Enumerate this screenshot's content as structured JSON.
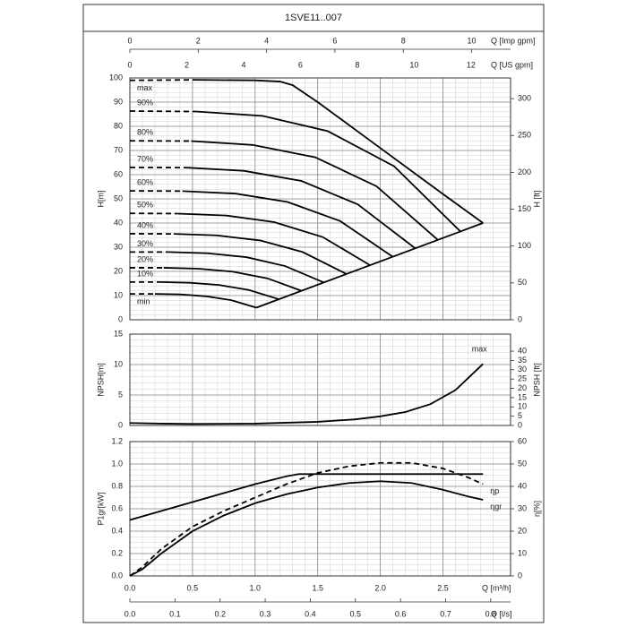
{
  "title": "1SVE11..007",
  "x_axis": {
    "label": "Q [m³/h]",
    "xlim": [
      0,
      3.04
    ],
    "minor_step": 0.1,
    "xticks": [
      {
        "value": 0,
        "label": "0.0"
      },
      {
        "value": 0.5,
        "label": "0.5"
      },
      {
        "value": 1,
        "label": "1.0"
      },
      {
        "value": 1.5,
        "label": "1.5"
      },
      {
        "value": 2,
        "label": "2.0"
      },
      {
        "value": 2.5,
        "label": "2.5"
      }
    ]
  },
  "extra_x_axes": [
    {
      "label": "Q [Imp gpm]",
      "xlim": [
        0,
        11.14
      ],
      "xticks": [
        0,
        2,
        4,
        6,
        8,
        10
      ]
    },
    {
      "label": "Q [US gpm]",
      "xlim": [
        0,
        13.39
      ],
      "xticks": [
        0,
        2,
        4,
        6,
        8,
        10,
        12
      ]
    },
    {
      "label": "Q [l/s]",
      "xlim": [
        0,
        0.844
      ],
      "xticks": [
        {
          "value": 0,
          "label": "0.0"
        },
        {
          "value": 0.1,
          "label": "0.1"
        },
        {
          "value": 0.2,
          "label": "0.2"
        },
        {
          "value": 0.3,
          "label": "0.3"
        },
        {
          "value": 0.4,
          "label": "0.4"
        },
        {
          "value": 0.5,
          "label": "0.5"
        },
        {
          "value": 0.6,
          "label": "0.6"
        },
        {
          "value": 0.7,
          "label": "0.7"
        },
        {
          "value": 0.8,
          "label": "0.8"
        }
      ]
    }
  ],
  "chart_data": [
    {
      "type": "line",
      "ylabel": "H[m]",
      "y2label": "H [ft]",
      "ylim": [
        0,
        100
      ],
      "yticks": [
        0,
        10,
        20,
        30,
        40,
        50,
        60,
        70,
        80,
        90,
        100
      ],
      "y2lim": [
        0,
        328.1
      ],
      "y2ticks": [
        0,
        50,
        100,
        150,
        200,
        250,
        300
      ],
      "minor_y": 2,
      "grid": true,
      "series": [
        {
          "name": "max",
          "color": "#000000",
          "dashed_until": 0.5,
          "x": [
            0,
            0.5,
            1.0,
            1.2,
            1.3,
            1.5,
            2.0,
            2.5,
            2.82
          ],
          "values": [
            99,
            99.2,
            99,
            98.5,
            97,
            90,
            71,
            52,
            40
          ]
        },
        {
          "name": "90%",
          "color": "#000000",
          "dashed_until": 0.53,
          "x": [
            0,
            0.53,
            1.06,
            1.58,
            2.11,
            2.64
          ],
          "values": [
            86.3,
            86.1,
            84.3,
            78.0,
            63.5,
            36.5
          ]
        },
        {
          "name": "80%",
          "color": "#000000",
          "dashed_until": 0.49,
          "x": [
            0,
            0.49,
            0.98,
            1.48,
            1.97,
            2.46
          ],
          "values": [
            74,
            73.9,
            72.3,
            67.2,
            55.2,
            33
          ]
        },
        {
          "name": "70%",
          "color": "#000000",
          "dashed_until": 0.46,
          "x": [
            0,
            0.46,
            0.91,
            1.37,
            1.82,
            2.28
          ],
          "values": [
            63,
            62.9,
            61.6,
            57.4,
            47.7,
            29.5
          ]
        },
        {
          "name": "60%",
          "color": "#000000",
          "dashed_until": 0.42,
          "x": [
            0,
            0.42,
            0.84,
            1.26,
            1.68,
            2.1
          ],
          "values": [
            53.3,
            53.2,
            52.2,
            48.7,
            40.8,
            26
          ]
        },
        {
          "name": "50%",
          "color": "#000000",
          "dashed_until": 0.38,
          "x": [
            0,
            0.38,
            0.77,
            1.15,
            1.54,
            1.92
          ],
          "values": [
            44,
            43.9,
            43.1,
            40.4,
            34.2,
            22.5
          ]
        },
        {
          "name": "40%",
          "color": "#000000",
          "dashed_until": 0.35,
          "x": [
            0,
            0.35,
            0.69,
            1.04,
            1.38,
            1.73
          ],
          "values": [
            35.6,
            35.5,
            34.9,
            32.8,
            28.0,
            18.9
          ]
        },
        {
          "name": "30%",
          "color": "#000000",
          "dashed_until": 0.31,
          "x": [
            0,
            0.31,
            0.62,
            0.93,
            1.24,
            1.55
          ],
          "values": [
            28,
            28.0,
            27.5,
            25.9,
            22.2,
            15.4
          ]
        },
        {
          "name": "20%",
          "color": "#000000",
          "dashed_until": 0.27,
          "x": [
            0,
            0.27,
            0.55,
            0.82,
            1.1,
            1.37
          ],
          "values": [
            21.5,
            21.5,
            21.1,
            19.9,
            17.1,
            12
          ]
        },
        {
          "name": "10%",
          "color": "#000000",
          "dashed_until": 0.24,
          "x": [
            0,
            0.24,
            0.48,
            0.71,
            0.95,
            1.19
          ],
          "values": [
            15.6,
            15.6,
            15.3,
            14.4,
            12.3,
            8.5
          ]
        },
        {
          "name": "min",
          "color": "#000000",
          "dashed_until": 0.2,
          "x": [
            0,
            0.2,
            0.4,
            0.61,
            0.81,
            1.01
          ],
          "values": [
            10.7,
            10.7,
            10.5,
            9.7,
            8.1,
            5
          ]
        },
        {
          "color": "#000000",
          "x": [
            1.01,
            2.82
          ],
          "values": [
            5,
            40
          ]
        }
      ]
    },
    {
      "type": "line",
      "ylabel": "NPSH[m]",
      "y2label": "NPSH [ft]",
      "ylim": [
        0,
        15
      ],
      "yticks": [
        0,
        5,
        10,
        15
      ],
      "y2lim": [
        0,
        49.2
      ],
      "y2ticks": [
        0,
        5,
        10,
        15,
        20,
        25,
        30,
        35,
        40
      ],
      "minor_y": 1,
      "grid": true,
      "series": [
        {
          "name": "max",
          "color": "#000000",
          "x": [
            0,
            0.25,
            0.5,
            1.0,
            1.5,
            1.8,
            2.0,
            2.2,
            2.4,
            2.6,
            2.82
          ],
          "values": [
            0.4,
            0.3,
            0.25,
            0.3,
            0.6,
            1.0,
            1.5,
            2.2,
            3.5,
            5.8,
            10.1
          ]
        }
      ]
    },
    {
      "type": "line",
      "ylabel": "P1gr[kW]",
      "y2label": "η[%]",
      "ylim": [
        0,
        1.2
      ],
      "yticks": [
        {
          "value": 0,
          "label": "0.0"
        },
        {
          "value": 0.2,
          "label": "0.2"
        },
        {
          "value": 0.4,
          "label": "0.4"
        },
        {
          "value": 0.6,
          "label": "0.6"
        },
        {
          "value": 0.8,
          "label": "0.8"
        },
        {
          "value": 1,
          "label": "1.0"
        },
        {
          "value": 1.2,
          "label": "1.2"
        }
      ],
      "y2lim": [
        0,
        60
      ],
      "y2ticks": [
        0,
        10,
        20,
        30,
        40,
        50,
        60
      ],
      "minor_y": 0.05,
      "grid": true,
      "series": [
        {
          "color": "#000000",
          "x": [
            0,
            0.25,
            0.5,
            0.75,
            1.0,
            1.25,
            1.35,
            1.5,
            2.0,
            2.5,
            2.82
          ],
          "values": [
            0.5,
            0.58,
            0.66,
            0.74,
            0.82,
            0.89,
            0.91,
            0.91,
            0.91,
            0.91,
            0.91
          ]
        },
        {
          "name": "ηp",
          "color": "#000000",
          "axis": "y2",
          "dashed_until": 2.82,
          "x": [
            0,
            0.1,
            0.25,
            0.5,
            0.75,
            1.0,
            1.25,
            1.5,
            1.75,
            2.0,
            2.25,
            2.5,
            2.7,
            2.82
          ],
          "values": [
            0,
            4,
            12,
            22,
            29,
            35,
            41,
            46,
            49,
            50.5,
            50.5,
            48,
            44,
            41
          ]
        },
        {
          "name": "ηgr",
          "color": "#000000",
          "axis": "y2",
          "x": [
            0,
            0.1,
            0.25,
            0.5,
            0.75,
            1.0,
            1.25,
            1.5,
            1.75,
            2.0,
            2.25,
            2.5,
            2.7,
            2.82
          ],
          "values": [
            0,
            3,
            10,
            20,
            27,
            32.5,
            36.5,
            39.5,
            41.5,
            42.3,
            41.5,
            38.5,
            35.5,
            34
          ]
        }
      ]
    }
  ]
}
